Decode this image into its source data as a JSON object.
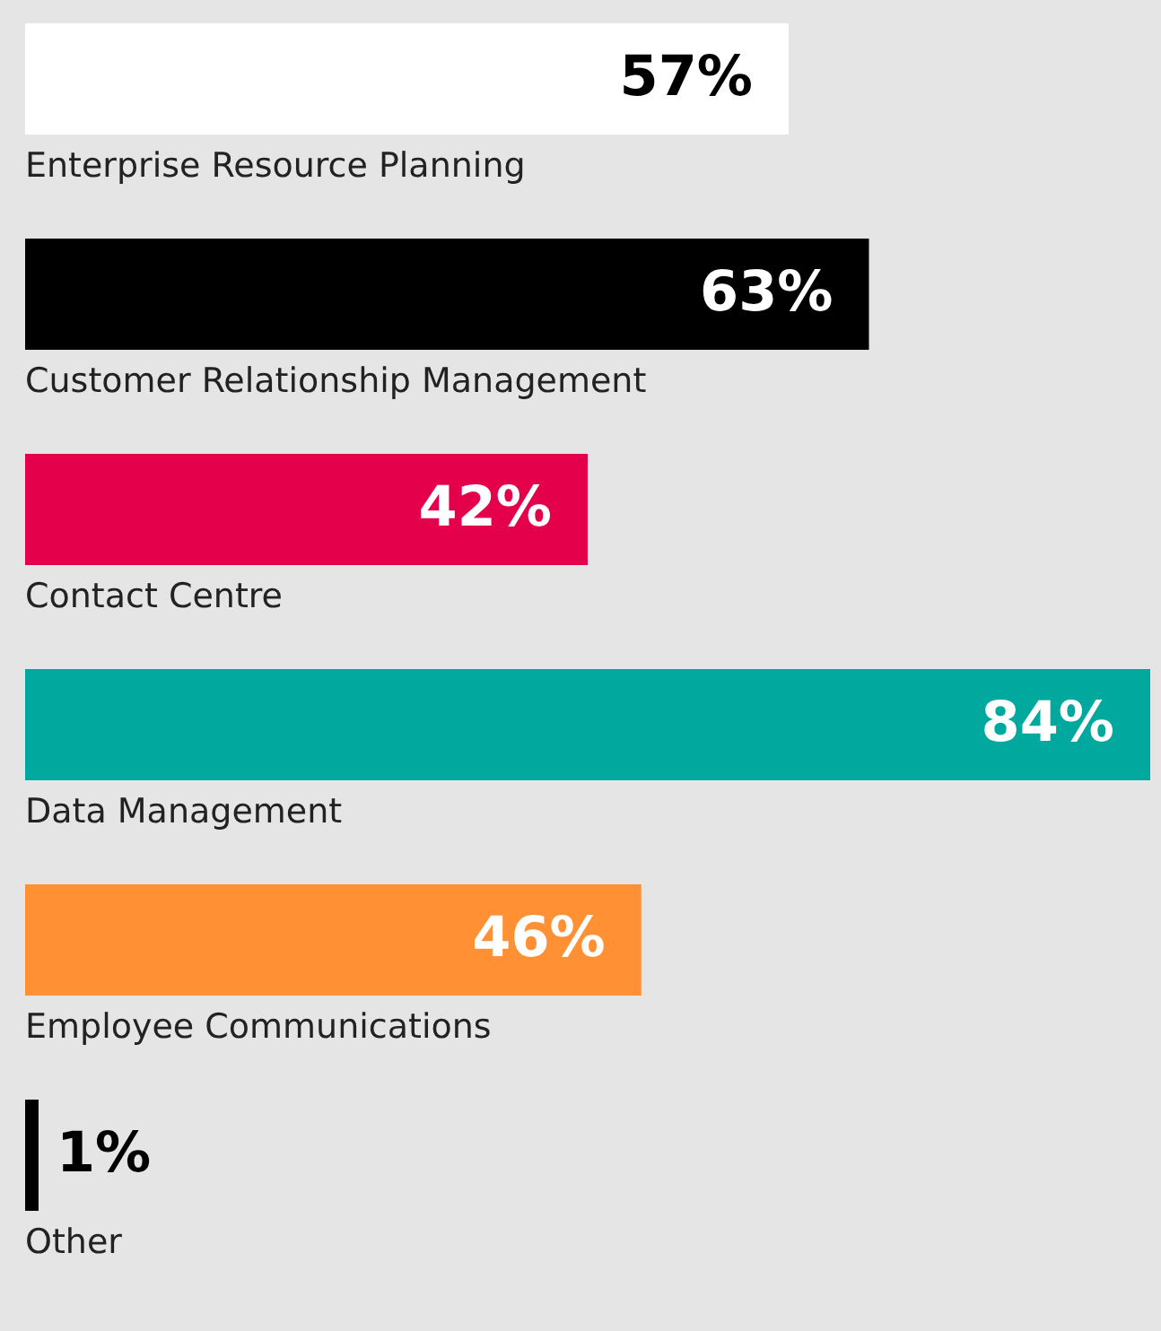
{
  "chart_data": {
    "type": "bar",
    "orientation": "horizontal",
    "categories": [
      "Enterprise Resource Planning",
      "Customer Relationship Management",
      "Contact Centre",
      "Data Management",
      "Employee Communications",
      "Other"
    ],
    "values": [
      57,
      63,
      42,
      84,
      46,
      1
    ],
    "colors": [
      "#ffffff",
      "#000000",
      "#e4004b",
      "#00a89d",
      "#ff9033",
      "#000000"
    ],
    "value_labels": [
      "57%",
      "63%",
      "42%",
      "84%",
      "46%",
      "1%"
    ]
  }
}
